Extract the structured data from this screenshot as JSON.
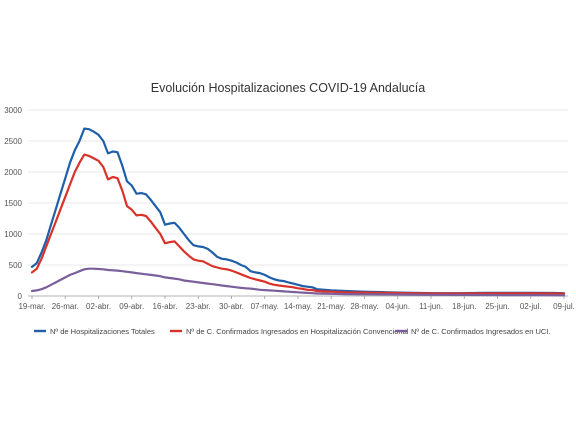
{
  "chart_data": {
    "type": "line",
    "title": "Evolución Hospitalizaciones COVID-19 Andalucía",
    "xlabel": "",
    "ylabel": "",
    "ylim": [
      0,
      3000
    ],
    "yticks": [
      0,
      500,
      1000,
      1500,
      2000,
      2500,
      3000
    ],
    "x_tick_labels": [
      "19-mar.",
      "26-mar.",
      "02-abr.",
      "09-abr.",
      "16-abr.",
      "23-abr.",
      "30-abr.",
      "07-may.",
      "14-may.",
      "21-may.",
      "28-may.",
      "04-jun.",
      "11-jun.",
      "18-jun.",
      "25-jun.",
      "02-jul.",
      "09-jul."
    ],
    "grid": true,
    "legend_position": "bottom",
    "series": [
      {
        "name": "Nº de Hospitalizaciones Totales",
        "color": "#1f5fa8",
        "points": [
          [
            0,
            470
          ],
          [
            1,
            530
          ],
          [
            2,
            700
          ],
          [
            3,
            900
          ],
          [
            4,
            1150
          ],
          [
            5,
            1400
          ],
          [
            6,
            1650
          ],
          [
            7,
            1900
          ],
          [
            8,
            2150
          ],
          [
            9,
            2350
          ],
          [
            10,
            2500
          ],
          [
            11,
            2700
          ],
          [
            12,
            2690
          ],
          [
            13,
            2650
          ],
          [
            14,
            2600
          ],
          [
            15,
            2500
          ],
          [
            16,
            2300
          ],
          [
            17,
            2330
          ],
          [
            18,
            2320
          ],
          [
            19,
            2100
          ],
          [
            20,
            1850
          ],
          [
            21,
            1780
          ],
          [
            22,
            1650
          ],
          [
            23,
            1660
          ],
          [
            24,
            1640
          ],
          [
            25,
            1550
          ],
          [
            26,
            1450
          ],
          [
            27,
            1350
          ],
          [
            28,
            1150
          ],
          [
            29,
            1170
          ],
          [
            30,
            1180
          ],
          [
            31,
            1100
          ],
          [
            32,
            1000
          ],
          [
            33,
            900
          ],
          [
            34,
            820
          ],
          [
            35,
            800
          ],
          [
            36,
            790
          ],
          [
            37,
            760
          ],
          [
            38,
            700
          ],
          [
            39,
            630
          ],
          [
            40,
            600
          ],
          [
            41,
            590
          ],
          [
            42,
            570
          ],
          [
            43,
            540
          ],
          [
            44,
            500
          ],
          [
            45,
            470
          ],
          [
            46,
            400
          ],
          [
            47,
            380
          ],
          [
            48,
            370
          ],
          [
            49,
            340
          ],
          [
            50,
            300
          ],
          [
            51,
            270
          ],
          [
            52,
            250
          ],
          [
            53,
            240
          ],
          [
            54,
            220
          ],
          [
            55,
            200
          ],
          [
            56,
            180
          ],
          [
            57,
            160
          ],
          [
            58,
            150
          ],
          [
            59,
            140
          ],
          [
            60,
            110
          ],
          [
            63,
            90
          ],
          [
            66,
            80
          ],
          [
            70,
            70
          ],
          [
            75,
            60
          ],
          [
            80,
            50
          ],
          [
            85,
            45
          ],
          [
            90,
            45
          ],
          [
            95,
            50
          ],
          [
            100,
            50
          ],
          [
            105,
            50
          ],
          [
            110,
            48
          ],
          [
            112,
            45
          ]
        ]
      },
      {
        "name": "Nº de C. Confirmados Ingresados en Hospitalización Convencional",
        "color": "#d9322a",
        "points": [
          [
            0,
            380
          ],
          [
            1,
            440
          ],
          [
            2,
            600
          ],
          [
            3,
            800
          ],
          [
            4,
            1000
          ],
          [
            5,
            1200
          ],
          [
            6,
            1400
          ],
          [
            7,
            1600
          ],
          [
            8,
            1800
          ],
          [
            9,
            2000
          ],
          [
            10,
            2150
          ],
          [
            11,
            2280
          ],
          [
            12,
            2260
          ],
          [
            13,
            2220
          ],
          [
            14,
            2180
          ],
          [
            15,
            2080
          ],
          [
            16,
            1880
          ],
          [
            17,
            1920
          ],
          [
            18,
            1900
          ],
          [
            19,
            1700
          ],
          [
            20,
            1450
          ],
          [
            21,
            1390
          ],
          [
            22,
            1300
          ],
          [
            23,
            1310
          ],
          [
            24,
            1290
          ],
          [
            25,
            1200
          ],
          [
            26,
            1100
          ],
          [
            27,
            1000
          ],
          [
            28,
            850
          ],
          [
            29,
            870
          ],
          [
            30,
            880
          ],
          [
            31,
            800
          ],
          [
            32,
            720
          ],
          [
            33,
            650
          ],
          [
            34,
            590
          ],
          [
            35,
            570
          ],
          [
            36,
            560
          ],
          [
            37,
            520
          ],
          [
            38,
            480
          ],
          [
            39,
            460
          ],
          [
            40,
            440
          ],
          [
            41,
            430
          ],
          [
            42,
            410
          ],
          [
            43,
            380
          ],
          [
            44,
            350
          ],
          [
            45,
            320
          ],
          [
            46,
            290
          ],
          [
            47,
            270
          ],
          [
            48,
            250
          ],
          [
            49,
            230
          ],
          [
            50,
            200
          ],
          [
            51,
            180
          ],
          [
            52,
            170
          ],
          [
            53,
            160
          ],
          [
            54,
            150
          ],
          [
            55,
            140
          ],
          [
            56,
            125
          ],
          [
            57,
            115
          ],
          [
            58,
            100
          ],
          [
            59,
            95
          ],
          [
            60,
            80
          ],
          [
            63,
            70
          ],
          [
            66,
            60
          ],
          [
            70,
            55
          ],
          [
            75,
            50
          ],
          [
            80,
            45
          ],
          [
            85,
            40
          ],
          [
            90,
            40
          ],
          [
            95,
            42
          ],
          [
            100,
            42
          ],
          [
            105,
            42
          ],
          [
            110,
            40
          ],
          [
            112,
            38
          ]
        ]
      },
      {
        "name": "Nº de C. Confirmados Ingresados en UCI.",
        "color": "#7a5f9a",
        "points": [
          [
            0,
            80
          ],
          [
            1,
            90
          ],
          [
            2,
            110
          ],
          [
            3,
            140
          ],
          [
            4,
            180
          ],
          [
            5,
            220
          ],
          [
            6,
            260
          ],
          [
            7,
            300
          ],
          [
            8,
            340
          ],
          [
            9,
            370
          ],
          [
            10,
            400
          ],
          [
            11,
            430
          ],
          [
            12,
            440
          ],
          [
            13,
            440
          ],
          [
            14,
            435
          ],
          [
            15,
            430
          ],
          [
            16,
            420
          ],
          [
            17,
            415
          ],
          [
            18,
            410
          ],
          [
            19,
            400
          ],
          [
            20,
            390
          ],
          [
            21,
            380
          ],
          [
            22,
            370
          ],
          [
            23,
            360
          ],
          [
            24,
            350
          ],
          [
            25,
            340
          ],
          [
            26,
            330
          ],
          [
            27,
            320
          ],
          [
            28,
            300
          ],
          [
            29,
            290
          ],
          [
            30,
            280
          ],
          [
            31,
            270
          ],
          [
            32,
            250
          ],
          [
            33,
            240
          ],
          [
            34,
            230
          ],
          [
            35,
            220
          ],
          [
            36,
            210
          ],
          [
            37,
            200
          ],
          [
            38,
            190
          ],
          [
            39,
            180
          ],
          [
            40,
            170
          ],
          [
            41,
            160
          ],
          [
            42,
            150
          ],
          [
            43,
            140
          ],
          [
            44,
            130
          ],
          [
            45,
            125
          ],
          [
            46,
            120
          ],
          [
            47,
            110
          ],
          [
            48,
            100
          ],
          [
            49,
            95
          ],
          [
            50,
            90
          ],
          [
            51,
            85
          ],
          [
            52,
            80
          ],
          [
            53,
            75
          ],
          [
            54,
            70
          ],
          [
            55,
            65
          ],
          [
            56,
            60
          ],
          [
            57,
            55
          ],
          [
            58,
            50
          ],
          [
            59,
            45
          ],
          [
            60,
            40
          ],
          [
            63,
            35
          ],
          [
            66,
            30
          ],
          [
            70,
            28
          ],
          [
            75,
            25
          ],
          [
            80,
            22
          ],
          [
            85,
            20
          ],
          [
            90,
            18
          ],
          [
            95,
            16
          ],
          [
            100,
            15
          ],
          [
            105,
            14
          ],
          [
            110,
            12
          ],
          [
            112,
            10
          ]
        ]
      }
    ]
  }
}
